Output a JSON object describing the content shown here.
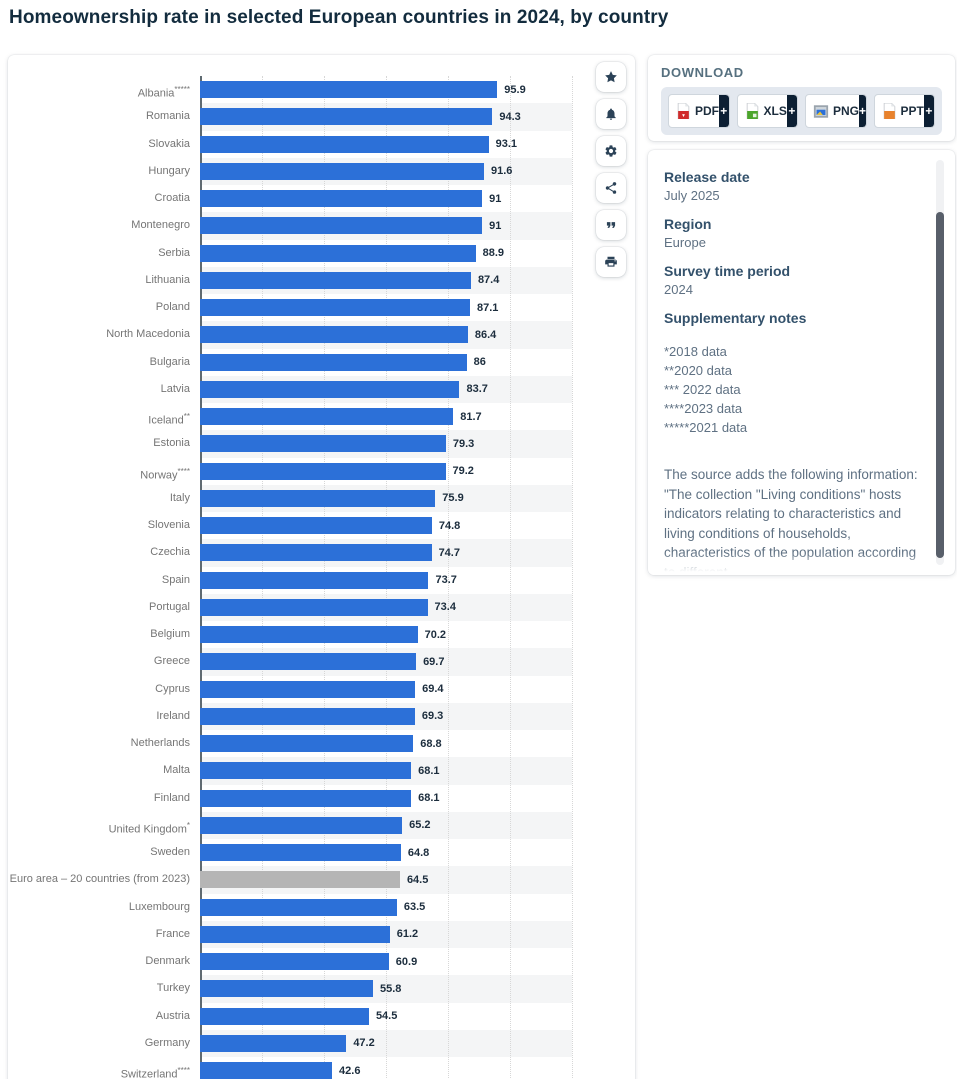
{
  "page": {
    "title": "Homeownership rate in selected European countries in 2024, by country"
  },
  "colors": {
    "bar": "#2c70d8",
    "bar_highlight": "#b5b5b5",
    "accent_dark": "#0c1f33",
    "title_text": "#132c3e",
    "stripe": "#f4f5f6"
  },
  "chart_data": {
    "type": "bar",
    "orientation": "horizontal",
    "title": "Homeownership rate in selected European countries in 2024, by country",
    "unit": "%",
    "xlim": [
      0,
      120
    ],
    "gridline_step": 20,
    "grid": true,
    "categories": [
      "Albania*****",
      "Romania",
      "Slovakia",
      "Hungary",
      "Croatia",
      "Montenegro",
      "Serbia",
      "Lithuania",
      "Poland",
      "North Macedonia",
      "Bulgaria",
      "Latvia",
      "Iceland**",
      "Estonia",
      "Norway****",
      "Italy",
      "Slovenia",
      "Czechia",
      "Spain",
      "Portugal",
      "Belgium",
      "Greece",
      "Cyprus",
      "Ireland",
      "Netherlands",
      "Malta",
      "Finland",
      "United Kingdom*",
      "Sweden",
      "Euro area – 20 countries (from 2023)",
      "Luxembourg",
      "France",
      "Denmark",
      "Turkey",
      "Austria",
      "Germany",
      "Switzerland****"
    ],
    "values": [
      95.9,
      94.3,
      93.1,
      91.6,
      91,
      91,
      88.9,
      87.4,
      87.1,
      86.4,
      86,
      83.7,
      81.7,
      79.3,
      79.2,
      75.9,
      74.8,
      74.7,
      73.7,
      73.4,
      70.2,
      69.7,
      69.4,
      69.3,
      68.8,
      68.1,
      68.1,
      65.2,
      64.8,
      64.5,
      63.5,
      61.2,
      60.9,
      55.8,
      54.5,
      47.2,
      42.6
    ],
    "value_labels": [
      "95.9",
      "94.3",
      "93.1",
      "91.6",
      "91",
      "91",
      "88.9",
      "87.4",
      "87.1",
      "86.4",
      "86",
      "83.7",
      "81.7",
      "79.3",
      "79.2",
      "75.9",
      "74.8",
      "74.7",
      "73.7",
      "73.4",
      "70.2",
      "69.7",
      "69.4",
      "69.3",
      "68.8",
      "68.1",
      "68.1",
      "65.2",
      "64.8",
      "64.5",
      "63.5",
      "61.2",
      "60.9",
      "55.8",
      "54.5",
      "47.2",
      "42.6"
    ],
    "highlight_index": 29,
    "highlight_category": "Euro area – 20 countries (from 2023)"
  },
  "toolbar": {
    "icons": [
      "star-icon",
      "bell-icon",
      "gear-icon",
      "share-icon",
      "cite-icon",
      "print-icon"
    ]
  },
  "download": {
    "heading": "DOWNLOAD",
    "buttons": [
      {
        "label": "PDF",
        "plus": "+"
      },
      {
        "label": "XLS",
        "plus": "+"
      },
      {
        "label": "PNG",
        "plus": "+"
      },
      {
        "label": "PPT",
        "plus": "+"
      }
    ]
  },
  "info": {
    "sections": [
      {
        "heading": "Release date",
        "value": "July 2025"
      },
      {
        "heading": "Region",
        "value": "Europe"
      },
      {
        "heading": "Survey time period",
        "value": "2024"
      }
    ],
    "notes_heading": "Supplementary notes",
    "notes": [
      "*2018 data",
      "**2020 data",
      "*** 2022 data",
      "****2023 data",
      "*****2021 data"
    ],
    "source_text": "The source adds the following information: \"The collection \"Living conditions\" hosts indicators relating to characteristics and living conditions of households, characteristics of the population according to different"
  }
}
